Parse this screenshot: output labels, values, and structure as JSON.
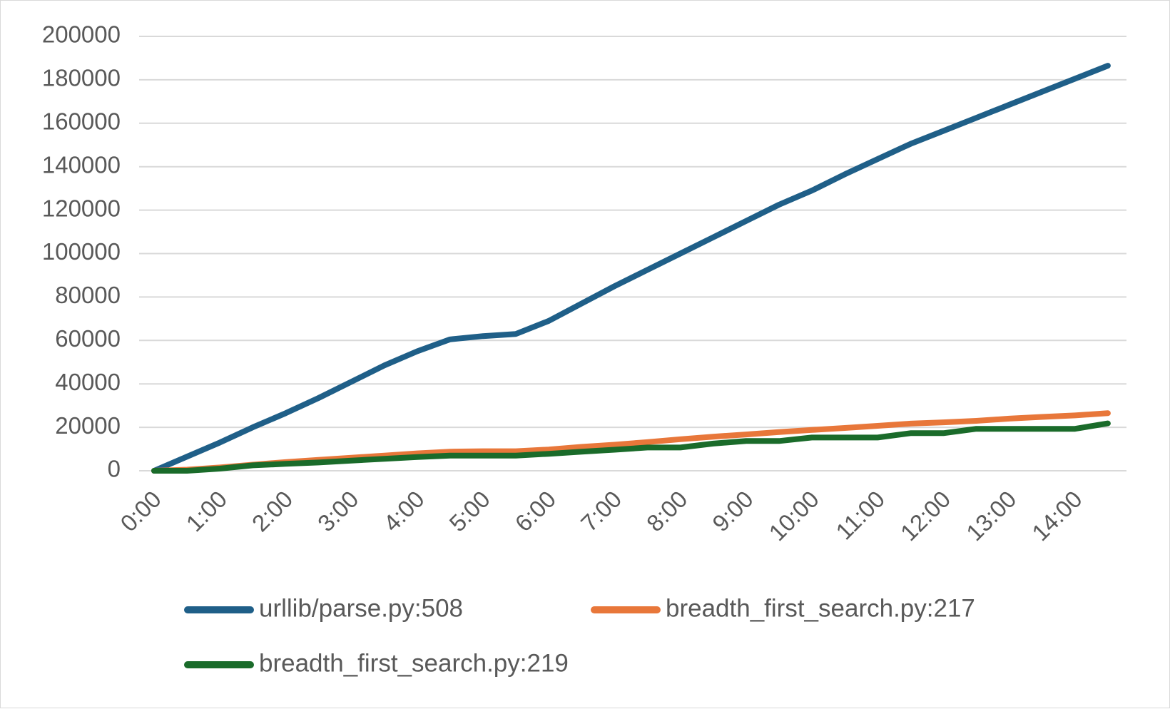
{
  "chart_data": {
    "type": "line",
    "categories": [
      "0:00",
      "1:00",
      "2:00",
      "3:00",
      "4:00",
      "5:00",
      "6:00",
      "7:00",
      "8:00",
      "9:00",
      "10:00",
      "11:00",
      "12:00",
      "13:00",
      "14:00"
    ],
    "x": [
      0,
      0.5,
      1,
      1.5,
      2,
      2.5,
      3,
      3.5,
      4,
      4.5,
      5,
      5.5,
      6,
      6.5,
      7,
      7.5,
      8,
      8.5,
      9,
      9.5,
      10,
      10.5,
      11,
      11.5,
      12,
      12.5,
      13,
      13.5,
      14,
      14.5
    ],
    "series": [
      {
        "name": "urllib/parse.py:508",
        "color": "#1f5f88",
        "values": [
          0,
          6500,
          13000,
          20000,
          26500,
          33500,
          41000,
          48500,
          55000,
          60500,
          62000,
          63000,
          69000,
          77000,
          85000,
          92500,
          100000,
          107500,
          115000,
          122500,
          129000,
          136500,
          143500,
          150500,
          156500,
          162500,
          168500,
          174500,
          180500,
          186500
        ]
      },
      {
        "name": "breadth_first_search.py:217",
        "color": "#e8773a",
        "values": [
          0,
          500,
          1500,
          2800,
          4000,
          5000,
          6000,
          7000,
          8000,
          8800,
          9000,
          9000,
          9800,
          11000,
          12000,
          13200,
          14500,
          15700,
          16700,
          17800,
          18800,
          19700,
          20700,
          21700,
          22300,
          23000,
          24000,
          24800,
          25500,
          26500
        ]
      },
      {
        "name": "breadth_first_search.py:219",
        "color": "#1a6b2a",
        "values": [
          0,
          0,
          1000,
          2500,
          3200,
          3800,
          4700,
          5500,
          6300,
          7000,
          7000,
          7000,
          7800,
          8800,
          9700,
          10700,
          10700,
          12500,
          13700,
          13700,
          15300,
          15300,
          15300,
          17300,
          17300,
          19300,
          19300,
          19300,
          19300,
          21800
        ]
      }
    ],
    "ylim": [
      0,
      200000
    ],
    "yticks": [
      0,
      20000,
      40000,
      60000,
      80000,
      100000,
      120000,
      140000,
      160000,
      180000,
      200000
    ],
    "grid": true,
    "legend_placement": "bottom",
    "axis_color": "#d9d9d9",
    "text_color": "#595959"
  }
}
